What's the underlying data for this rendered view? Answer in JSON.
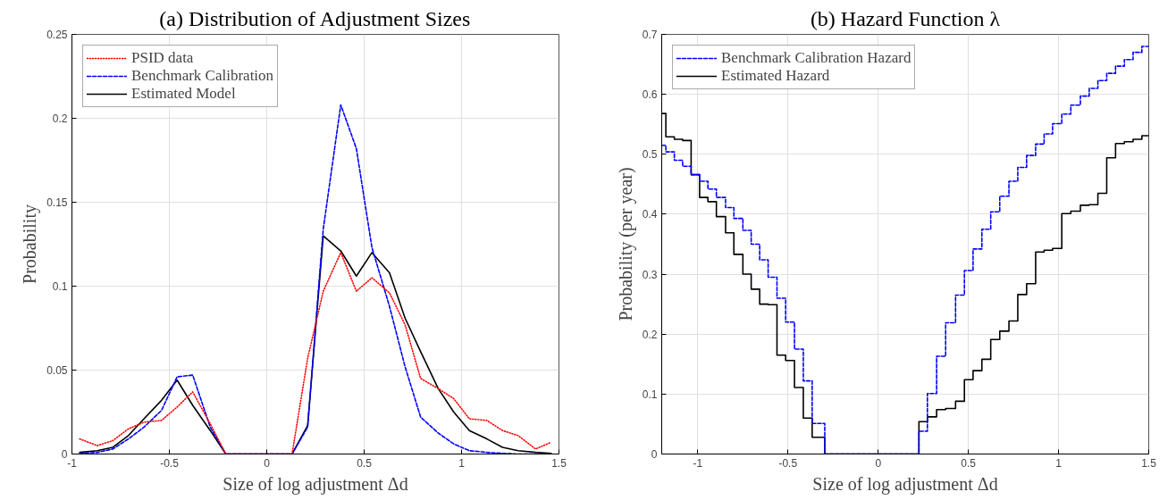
{
  "chart_data": [
    {
      "type": "line",
      "title": "(a) Distribution of Adjustment Sizes",
      "xlabel": "Size of log adjustment Δd",
      "ylabel": "Probability",
      "x": [
        -0.96,
        -0.87,
        -0.79,
        -0.71,
        -0.63,
        -0.54,
        -0.46,
        -0.38,
        -0.29,
        -0.21,
        -0.12,
        -0.04,
        0.04,
        0.13,
        0.21,
        0.29,
        0.38,
        0.46,
        0.54,
        0.63,
        0.71,
        0.79,
        0.88,
        0.96,
        1.04,
        1.13,
        1.21,
        1.29,
        1.38,
        1.46
      ],
      "series": [
        {
          "name": "PSID data",
          "color": "#ff0000",
          "line_style": "dotted",
          "values": [
            0.009,
            0.005,
            0.008,
            0.015,
            0.019,
            0.02,
            0.028,
            0.037,
            0.018,
            0,
            0,
            0,
            0,
            0,
            0.057,
            0.097,
            0.12,
            0.097,
            0.105,
            0.096,
            0.077,
            0.045,
            0.039,
            0.033,
            0.021,
            0.02,
            0.014,
            0.011,
            0.003,
            0.007
          ]
        },
        {
          "name": "Benchmark Calibration",
          "color": "#0000ff",
          "line_style": "dashed",
          "values": [
            0.0004,
            0.001,
            0.003,
            0.009,
            0.016,
            0.026,
            0.046,
            0.047,
            0.016,
            0,
            0,
            0,
            0,
            0,
            0.016,
            0.134,
            0.208,
            0.182,
            0.123,
            0.088,
            0.052,
            0.022,
            0.0125,
            0.006,
            0.002,
            0.001,
            0.0004,
            0,
            0,
            0
          ]
        },
        {
          "name": "Estimated Model",
          "color": "#000000",
          "line_style": "solid",
          "values": [
            0.001,
            0.002,
            0.004,
            0.011,
            0.021,
            0.032,
            0.044,
            0.029,
            0.014,
            0,
            0,
            0,
            0,
            0,
            0.017,
            0.13,
            0.121,
            0.106,
            0.12,
            0.108,
            0.081,
            0.061,
            0.039,
            0.025,
            0.014,
            0.009,
            0.004,
            0.002,
            0.001,
            0.0004
          ]
        }
      ],
      "xlim": [
        -1,
        1.5
      ],
      "xticks": [
        -1,
        -0.5,
        0,
        0.5,
        1,
        1.5
      ],
      "ylim": [
        0,
        0.25
      ],
      "yticks": [
        0,
        0.05,
        0.1,
        0.15,
        0.2,
        0.25
      ],
      "grid": true,
      "legend": "top left"
    },
    {
      "type": "step",
      "title": "(b) Hazard Function λ",
      "xlabel": "Size of log adjustment Δd",
      "ylabel": "Probability (per year)",
      "x": [
        -1.2,
        -1.177,
        -1.13,
        -1.084,
        -1.037,
        -0.99,
        -0.944,
        -0.897,
        -0.846,
        -0.8,
        -0.75,
        -0.704,
        -0.657,
        -0.61,
        -0.561,
        -0.513,
        -0.464,
        -0.415,
        -0.366,
        -0.296,
        0.226,
        0.273,
        0.324,
        0.374,
        0.429,
        0.478,
        0.526,
        0.575,
        0.624,
        0.674,
        0.725,
        0.774,
        0.823,
        0.873,
        0.92,
        0.967,
        1.018,
        1.068,
        1.121,
        1.17,
        1.218,
        1.267,
        1.316,
        1.365,
        1.413,
        1.462,
        1.5
      ],
      "series": [
        {
          "name": "Benchmark Calibration Hazard",
          "color": "#0000ff",
          "line_style": "dashed",
          "values": [
            0.515,
            0.504,
            0.49,
            0.48,
            0.466,
            0.455,
            0.442,
            0.428,
            0.411,
            0.393,
            0.373,
            0.35,
            0.324,
            0.295,
            0.26,
            0.22,
            0.175,
            0.122,
            0.051,
            0,
            0.038,
            0.101,
            0.163,
            0.219,
            0.265,
            0.306,
            0.342,
            0.375,
            0.404,
            0.43,
            0.455,
            0.478,
            0.498,
            0.517,
            0.534,
            0.551,
            0.567,
            0.582,
            0.597,
            0.61,
            0.623,
            0.635,
            0.647,
            0.658,
            0.67,
            0.68,
            0.68
          ]
        },
        {
          "name": "Estimated Hazard",
          "color": "#000000",
          "line_style": "solid",
          "values": [
            0.568,
            0.529,
            0.525,
            0.523,
            0.466,
            0.428,
            0.421,
            0.396,
            0.369,
            0.333,
            0.3,
            0.275,
            0.25,
            0.249,
            0.165,
            0.156,
            0.111,
            0.06,
            0.028,
            0,
            0.054,
            0.062,
            0.074,
            0.076,
            0.088,
            0.124,
            0.139,
            0.158,
            0.191,
            0.205,
            0.222,
            0.266,
            0.284,
            0.337,
            0.34,
            0.343,
            0.401,
            0.405,
            0.415,
            0.416,
            0.435,
            0.494,
            0.518,
            0.521,
            0.525,
            0.531,
            0.531
          ]
        }
      ],
      "xlim": [
        -1.2,
        1.5
      ],
      "xticks": [
        -1,
        -0.5,
        0,
        0.5,
        1,
        1.5
      ],
      "ylim": [
        0,
        0.7
      ],
      "yticks": [
        0,
        0.1,
        0.2,
        0.3,
        0.4,
        0.5,
        0.6,
        0.7
      ],
      "grid": true,
      "legend": "top left"
    }
  ]
}
